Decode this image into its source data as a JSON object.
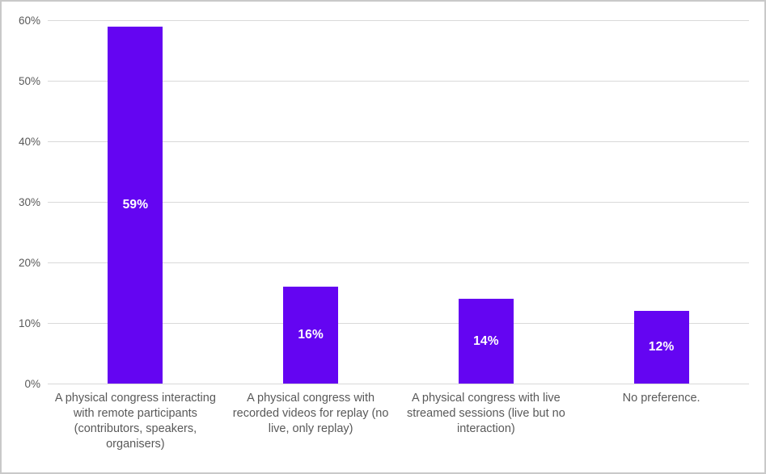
{
  "chart_data": {
    "type": "bar",
    "title": "",
    "xlabel": "",
    "ylabel": "",
    "categories": [
      "A physical congress interacting with remote participants (contributors, speakers, organisers)",
      "A physical congress with recorded videos for replay (no live, only replay)",
      "A physical congress with live streamed sessions (live but no interaction)",
      "No preference."
    ],
    "values": [
      59,
      16,
      14,
      12
    ],
    "value_labels": [
      "59%",
      "16%",
      "14%",
      "12%"
    ],
    "ylim": [
      0,
      60
    ],
    "y_ticks": [
      0,
      10,
      20,
      30,
      40,
      50,
      60
    ],
    "y_tick_labels": [
      "0%",
      "10%",
      "20%",
      "30%",
      "40%",
      "50%",
      "60%"
    ],
    "grid": true,
    "legend": false
  },
  "colors": {
    "bar_fill": "#6405f2",
    "value_label": "#ffffff",
    "gridline": "#d9d9d9",
    "axis_line": "#d9d9d9",
    "tick_text": "#595959",
    "category_text": "#595959",
    "frame_border": "#c9c9c9",
    "background": "#ffffff"
  }
}
